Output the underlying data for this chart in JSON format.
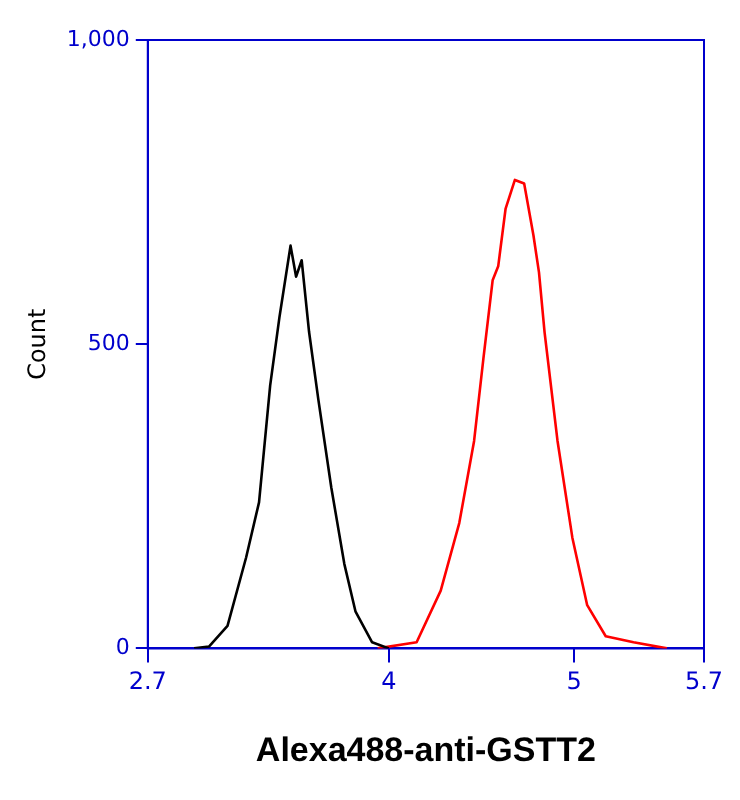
{
  "chart_data": {
    "type": "line",
    "xlabel": "Alexa488-anti-GSTT2",
    "ylabel": "Count",
    "xlim": [
      2.7,
      5.7
    ],
    "xticks": [
      2.7,
      4,
      5,
      5.7
    ],
    "ylim": [
      0,
      1000
    ],
    "yticks": [
      0,
      500,
      {
        "value": 1000,
        "label": "1,000"
      }
    ],
    "grid": false,
    "legend": false,
    "marker": "none",
    "line_style": "solid",
    "series": [
      {
        "color": "#000000",
        "x": [
          2.95,
          3.03,
          3.13,
          3.23,
          3.3,
          3.36,
          3.41,
          3.47,
          3.5,
          3.53,
          3.57,
          3.62,
          3.69,
          3.76,
          3.82,
          3.91,
          4.0
        ],
        "values": [
          0,
          3,
          37,
          149,
          240,
          432,
          544,
          662,
          611,
          638,
          520,
          409,
          264,
          139,
          61,
          10,
          0
        ]
      },
      {
        "color": "#ff0000",
        "x": [
          3.94,
          4.15,
          4.28,
          4.38,
          4.46,
          4.51,
          4.56,
          4.59,
          4.63,
          4.68,
          4.73,
          4.78,
          4.81,
          4.84,
          4.91,
          4.99,
          5.07,
          5.17,
          5.32,
          5.5
        ],
        "values": [
          0,
          10,
          95,
          206,
          341,
          476,
          605,
          628,
          723,
          770,
          764,
          679,
          618,
          520,
          341,
          182,
          71,
          20,
          10,
          0
        ]
      }
    ]
  }
}
